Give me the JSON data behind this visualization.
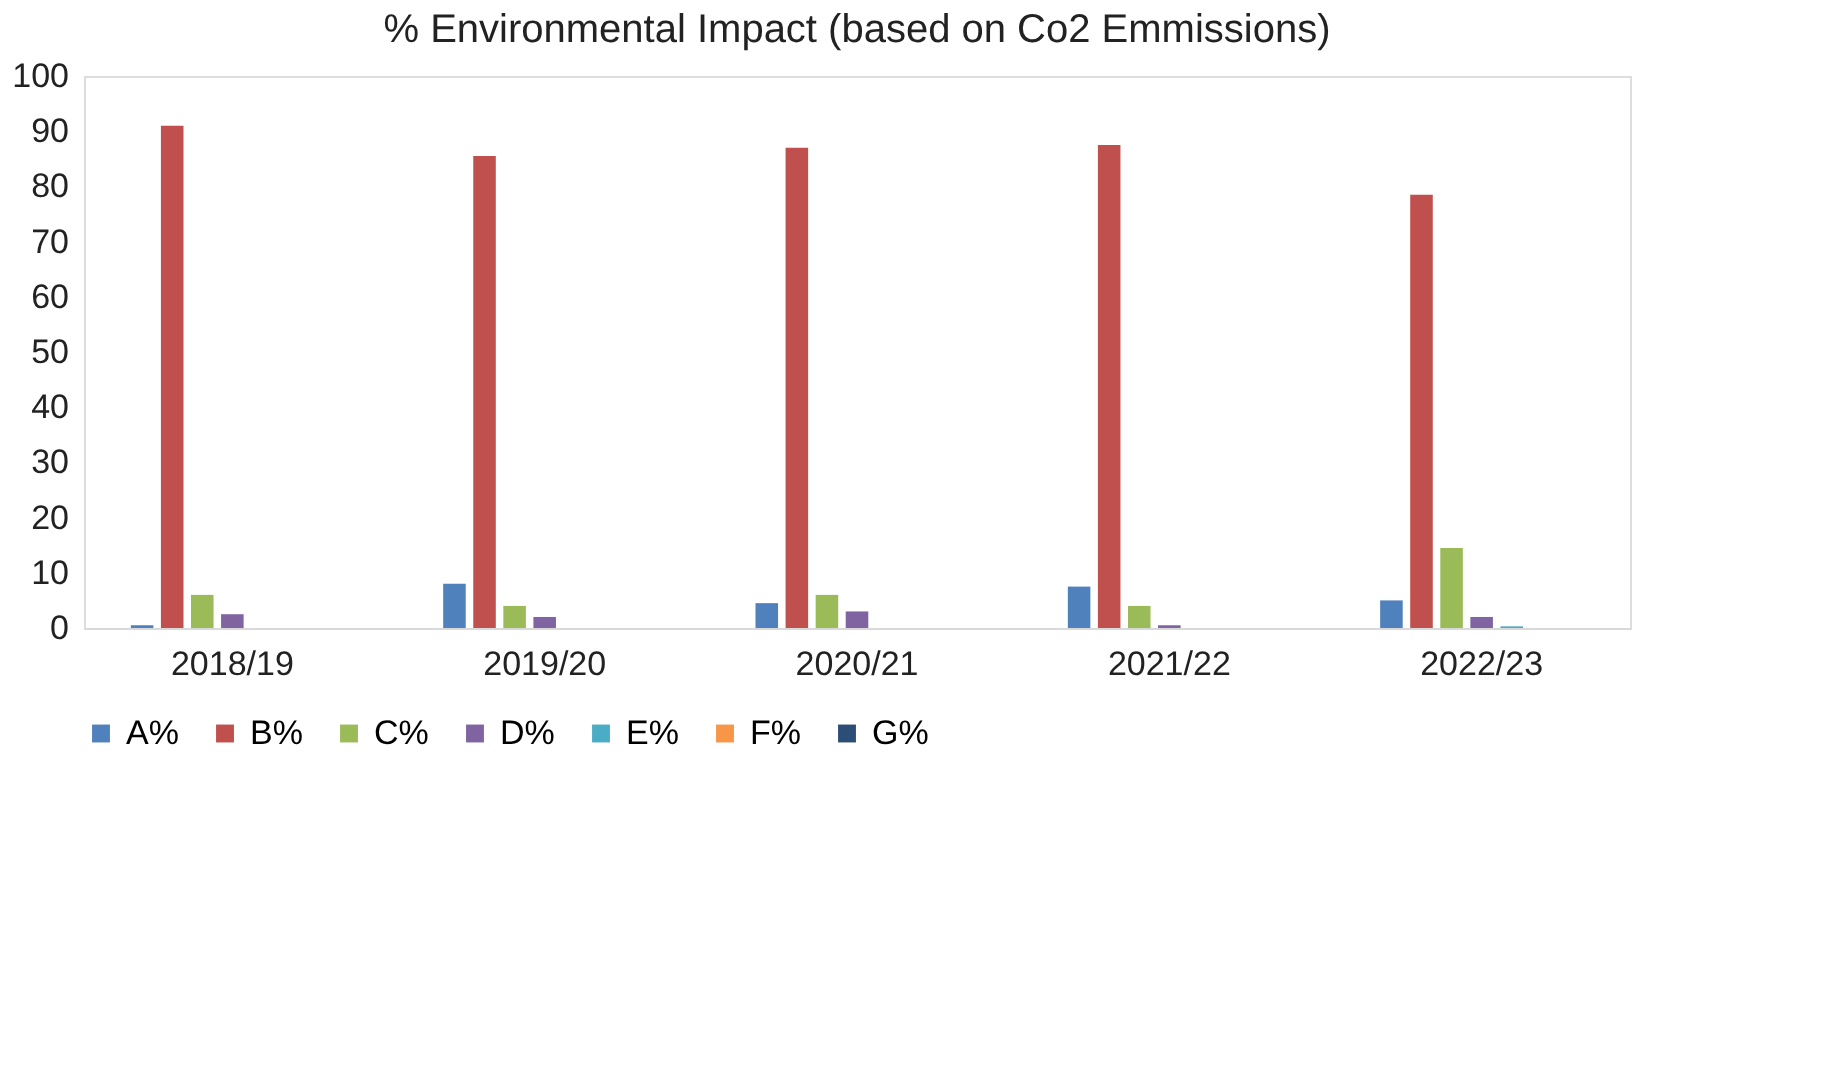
{
  "chart_data": {
    "type": "bar",
    "title": "% Environmental  Impact  (based on Co2 Emmissions)",
    "categories": [
      "2018/19",
      "2019/20",
      "2020/21",
      "2021/22",
      "2022/23"
    ],
    "series": [
      {
        "name": "A%",
        "color": "#4f81bd",
        "values": [
          0.5,
          8,
          4.5,
          7.5,
          5
        ]
      },
      {
        "name": "B%",
        "color": "#c0504d",
        "values": [
          91,
          85.5,
          87,
          87.5,
          78.5
        ]
      },
      {
        "name": "C%",
        "color": "#9bbb59",
        "values": [
          6,
          4,
          6,
          4,
          14.5
        ]
      },
      {
        "name": "D%",
        "color": "#8064a2",
        "values": [
          2.5,
          2,
          3,
          0.5,
          2
        ]
      },
      {
        "name": "E%",
        "color": "#4bacc6",
        "values": [
          0,
          0,
          0,
          0,
          0.3
        ]
      },
      {
        "name": "F%",
        "color": "#f79646",
        "values": [
          0,
          0,
          0,
          0,
          0
        ]
      },
      {
        "name": "G%",
        "color": "#2c4d75",
        "values": [
          0,
          0,
          0,
          0,
          0
        ]
      }
    ],
    "ylim": [
      0,
      100
    ],
    "yticks": [
      0,
      10,
      20,
      30,
      40,
      50,
      60,
      70,
      80,
      90,
      100
    ],
    "grid": false,
    "legend": "bottom"
  }
}
